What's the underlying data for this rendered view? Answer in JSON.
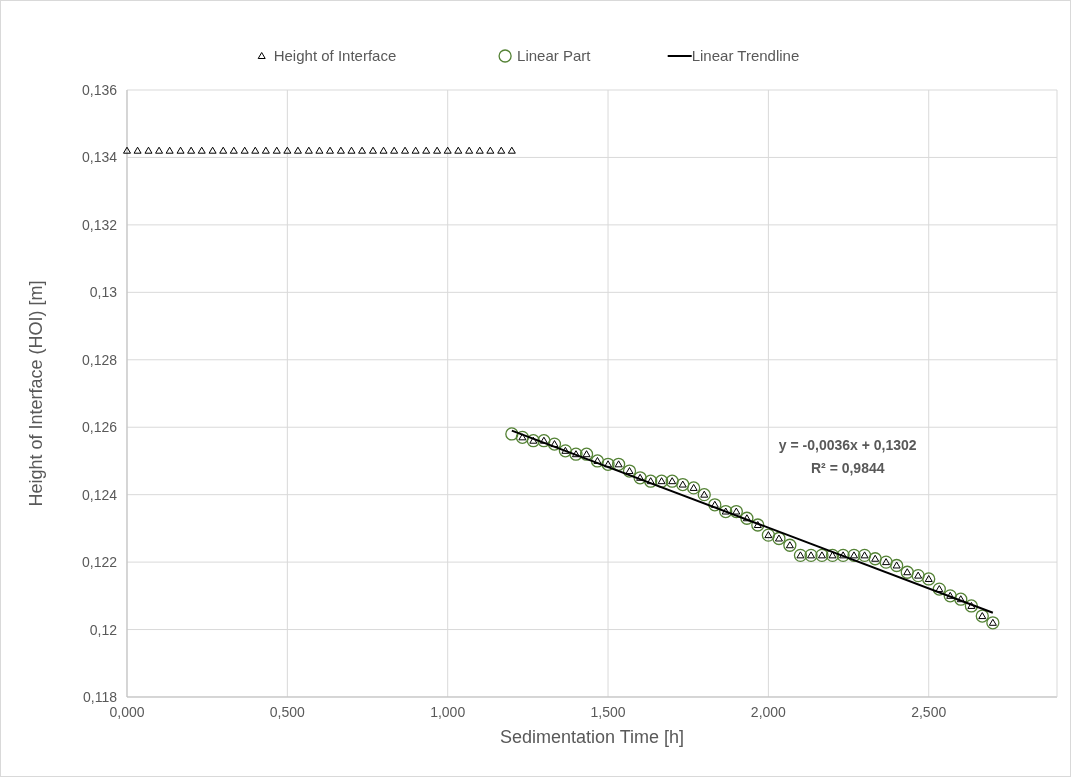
{
  "chart_data": {
    "type": "scatter",
    "xlabel": "Sedimentation Time [h]",
    "ylabel": "Height of Interface (HOI) [m]",
    "xlim": [
      0,
      2.9
    ],
    "xticks": [
      {
        "value": 0,
        "label": "0,000"
      },
      {
        "value": 0.5,
        "label": "0,500"
      },
      {
        "value": 1,
        "label": "1,000"
      },
      {
        "value": 1.5,
        "label": "1,500"
      },
      {
        "value": 2,
        "label": "2,000"
      },
      {
        "value": 2.5,
        "label": "2,500"
      }
    ],
    "ylim": [
      0.118,
      0.136
    ],
    "yticks": [
      {
        "value": 0.118,
        "label": "0,118"
      },
      {
        "value": 0.12,
        "label": "0,12"
      },
      {
        "value": 0.122,
        "label": "0,122"
      },
      {
        "value": 0.124,
        "label": "0,124"
      },
      {
        "value": 0.126,
        "label": "0,126"
      },
      {
        "value": 0.128,
        "label": "0,128"
      },
      {
        "value": 0.13,
        "label": "0,13"
      },
      {
        "value": 0.132,
        "label": "0,132"
      },
      {
        "value": 0.134,
        "label": "0,134"
      },
      {
        "value": 0.136,
        "label": "0,136"
      }
    ],
    "grid": true,
    "legend": "top",
    "annotations": [
      "y = -0,0036x + 0,1302",
      "R² = 0,9844"
    ],
    "series": [
      {
        "name": "Height of Interface",
        "marker": "triangle",
        "color": "#000000",
        "x": [
          0,
          0.033,
          0.067,
          0.1,
          0.133,
          0.167,
          0.2,
          0.233,
          0.267,
          0.3,
          0.333,
          0.367,
          0.4,
          0.433,
          0.467,
          0.5,
          0.533,
          0.567,
          0.6,
          0.633,
          0.667,
          0.7,
          0.733,
          0.767,
          0.8,
          0.833,
          0.867,
          0.9,
          0.933,
          0.967,
          1,
          1.033,
          1.067,
          1.1,
          1.133,
          1.167,
          1.2,
          1.233,
          1.267,
          1.3,
          1.333,
          1.367,
          1.4,
          1.433,
          1.467,
          1.5,
          1.533,
          1.567,
          1.6,
          1.633,
          1.667,
          1.7,
          1.733,
          1.767,
          1.8,
          1.833,
          1.867,
          1.9,
          1.933,
          1.967,
          2,
          2.033,
          2.067,
          2.1,
          2.133,
          2.167,
          2.2,
          2.233,
          2.267,
          2.3,
          2.333,
          2.367,
          2.4,
          2.433,
          2.467,
          2.5,
          2.533,
          2.567,
          2.6,
          2.633,
          2.667,
          2.7
        ],
        "values": [
          0.1342,
          0.1342,
          0.1342,
          0.1342,
          0.1342,
          0.1342,
          0.1342,
          0.1342,
          0.1342,
          0.1342,
          0.1342,
          0.1342,
          0.1342,
          0.1342,
          0.1342,
          0.1342,
          0.1342,
          0.1342,
          0.1342,
          0.1342,
          0.1342,
          0.1342,
          0.1342,
          0.1342,
          0.1342,
          0.1342,
          0.1342,
          0.1342,
          0.1342,
          0.1342,
          0.1342,
          0.1342,
          0.1342,
          0.1342,
          0.1342,
          0.1342,
          0.1342,
          0.1257,
          0.1256,
          0.1256,
          0.1255,
          0.1253,
          0.1252,
          0.1252,
          0.125,
          0.1249,
          0.1249,
          0.1247,
          0.1245,
          0.1244,
          0.1244,
          0.1244,
          0.1243,
          0.1242,
          0.124,
          0.1237,
          0.1235,
          0.1235,
          0.1233,
          0.1231,
          0.1228,
          0.1227,
          0.1225,
          0.1222,
          0.1222,
          0.1222,
          0.1222,
          0.1222,
          0.1222,
          0.1222,
          0.1221,
          0.122,
          0.1219,
          0.1217,
          0.1216,
          0.1215,
          0.1212,
          0.121,
          0.1209,
          0.1207,
          0.1204,
          0.1202
        ]
      },
      {
        "name": "Linear Part",
        "marker": "circle",
        "color": "#548235",
        "x": [
          1.2,
          1.233,
          1.267,
          1.3,
          1.333,
          1.367,
          1.4,
          1.433,
          1.467,
          1.5,
          1.533,
          1.567,
          1.6,
          1.633,
          1.667,
          1.7,
          1.733,
          1.767,
          1.8,
          1.833,
          1.867,
          1.9,
          1.933,
          1.967,
          2,
          2.033,
          2.067,
          2.1,
          2.133,
          2.167,
          2.2,
          2.233,
          2.267,
          2.3,
          2.333,
          2.367,
          2.4,
          2.433,
          2.467,
          2.5,
          2.533,
          2.567,
          2.6,
          2.633,
          2.667,
          2.7
        ],
        "values": [
          0.1258,
          0.1257,
          0.1256,
          0.1256,
          0.1255,
          0.1253,
          0.1252,
          0.1252,
          0.125,
          0.1249,
          0.1249,
          0.1247,
          0.1245,
          0.1244,
          0.1244,
          0.1244,
          0.1243,
          0.1242,
          0.124,
          0.1237,
          0.1235,
          0.1235,
          0.1233,
          0.1231,
          0.1228,
          0.1227,
          0.1225,
          0.1222,
          0.1222,
          0.1222,
          0.1222,
          0.1222,
          0.1222,
          0.1222,
          0.1221,
          0.122,
          0.1219,
          0.1217,
          0.1216,
          0.1215,
          0.1212,
          0.121,
          0.1209,
          0.1207,
          0.1204,
          0.1202
        ]
      },
      {
        "name": "Linear Trendline",
        "type": "line",
        "marker": "none",
        "line_style": "solid",
        "color": "#000000",
        "x": [
          1.2,
          2.7
        ],
        "values": [
          0.1259,
          0.1205
        ]
      }
    ]
  }
}
